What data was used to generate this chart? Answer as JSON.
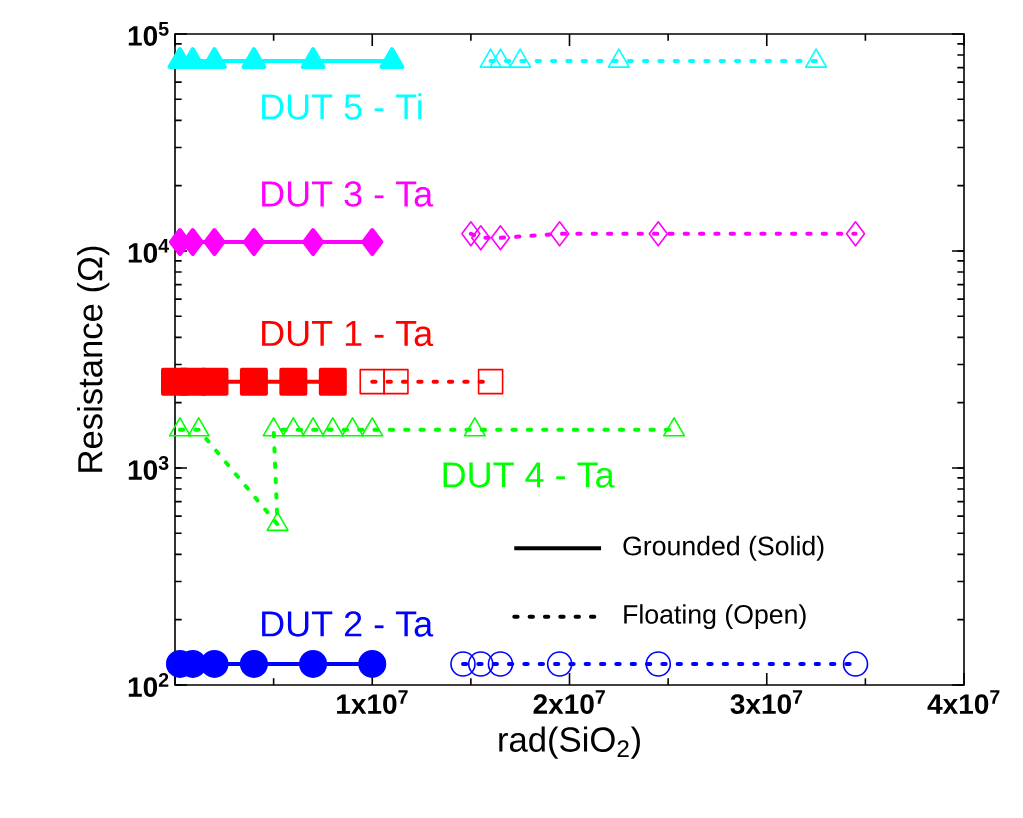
{
  "chart_data": {
    "type": "line",
    "xlabel": "rad(SiO$_{2}$)",
    "ylabel": "Resistance (Ω)",
    "log": "y",
    "xlim": [
      0,
      40000000
    ],
    "ylim": [
      100,
      100000
    ],
    "xticks": [
      {
        "value": 0,
        "label": null
      },
      {
        "value": 10000000,
        "label": "1x10$^{7}$"
      },
      {
        "value": 20000000,
        "label": "2x10$^{7}$"
      },
      {
        "value": 30000000,
        "label": "3x10$^{7}$"
      },
      {
        "value": 40000000,
        "label": "4x10$^{7}$"
      }
    ],
    "yticks": [
      {
        "value": 100,
        "label": "10$^{2}$"
      },
      {
        "value": 1000,
        "label": "10$^{3}$"
      },
      {
        "value": 10000,
        "label": "10$^{4}$"
      },
      {
        "value": 100000,
        "label": "10$^{5}$"
      }
    ],
    "grid": false,
    "annotations": [
      "Grounded (Solid)",
      "Floating (Open)"
    ],
    "series": [
      {
        "name": "DUT 5 - Ti",
        "color": "#00ffff",
        "marker": "triangle",
        "line_style": "solid",
        "x": [
          250000,
          900000,
          2000000,
          4000000,
          7000000,
          11000000
        ],
        "values": [
          75000,
          75000,
          75000,
          75000,
          75000,
          75000
        ]
      },
      {
        "color": "#00ffff",
        "marker": "triangle",
        "line_style": "dotted",
        "x": [
          16000000,
          16500000,
          17500000,
          22500000,
          32500000
        ],
        "values": [
          75000,
          75000,
          75000,
          75000,
          75000
        ]
      },
      {
        "name": "DUT 3 - Ta",
        "color": "#ff00ff",
        "marker": "diamond",
        "line_style": "solid",
        "x": [
          250000,
          900000,
          2000000,
          4000000,
          7000000,
          10000000
        ],
        "values": [
          11000,
          11000,
          11000,
          11000,
          11000,
          11000
        ]
      },
      {
        "color": "#ff00ff",
        "marker": "diamond",
        "line_style": "dotted",
        "x": [
          15000000,
          15500000,
          16500000,
          19500000,
          24500000,
          34500000
        ],
        "values": [
          12000,
          11500,
          11500,
          12000,
          12000,
          12000
        ]
      },
      {
        "name": "DUT 1 - Ta",
        "color": "#ff0000",
        "marker": "square",
        "line_style": "solid",
        "x": [
          0,
          900000,
          2000000,
          4000000,
          6000000,
          8000000
        ],
        "values": [
          2500,
          2500,
          2500,
          2500,
          2500,
          2500
        ]
      },
      {
        "color": "#ff0000",
        "marker": "square",
        "line_style": "dotted",
        "x": [
          10000000,
          11200000,
          16000000
        ],
        "values": [
          2500,
          2500,
          2500
        ]
      },
      {
        "name": "DUT 4 - Ta",
        "color": "#00ff00",
        "marker": "triangle",
        "line_style": "dotted",
        "x": [
          250000,
          1200000,
          5200000,
          5000000,
          6000000,
          7000000,
          8000000,
          9000000,
          10000000,
          15200000,
          25300000
        ],
        "values": [
          1500,
          1500,
          550,
          1500,
          1500,
          1500,
          1500,
          1500,
          1500,
          1500,
          1500
        ]
      },
      {
        "name": "DUT 2 - Ta",
        "color": "#0000ff",
        "marker": "circle",
        "line_style": "solid",
        "x": [
          250000,
          900000,
          2000000,
          4000000,
          7000000,
          10000000
        ],
        "values": [
          125,
          125,
          125,
          125,
          125,
          125
        ]
      },
      {
        "color": "#0000ff",
        "marker": "circle",
        "line_style": "dotted",
        "x": [
          14600000,
          15500000,
          16500000,
          19500000,
          24500000,
          34500000
        ],
        "values": [
          125,
          125,
          125,
          125,
          125,
          125
        ]
      }
    ]
  }
}
